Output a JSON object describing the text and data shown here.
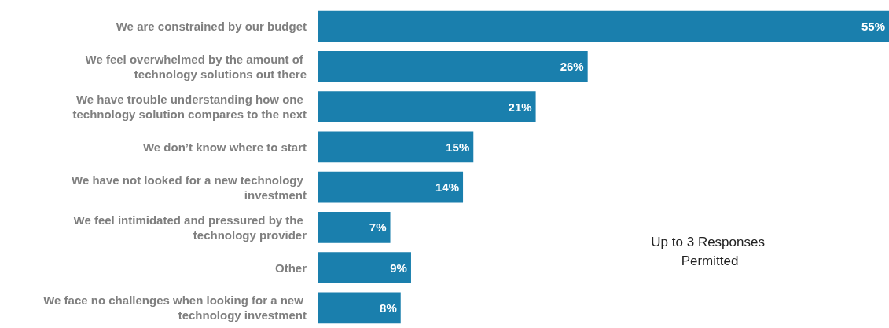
{
  "chart_data": {
    "type": "bar",
    "orientation": "horizontal",
    "categories": [
      "We are constrained by our budget",
      "We feel overwhelmed by the amount of technology solutions out there",
      "We have trouble understanding how one technology solution compares to the next",
      "We don’t know where to start",
      "We have not looked for a new technology investment",
      "We feel intimidated and pressured by the technology provider",
      "Other",
      "We face no challenges when looking for a new technology investment"
    ],
    "values": [
      55,
      26,
      21,
      15,
      14,
      7,
      9,
      8
    ],
    "value_labels": [
      "55%",
      "26%",
      "21%",
      "15%",
      "14%",
      "7%",
      "9%",
      "8%"
    ],
    "color": "#1a7fad",
    "annotations": [
      "Up to 3 Responses Permitted"
    ]
  }
}
